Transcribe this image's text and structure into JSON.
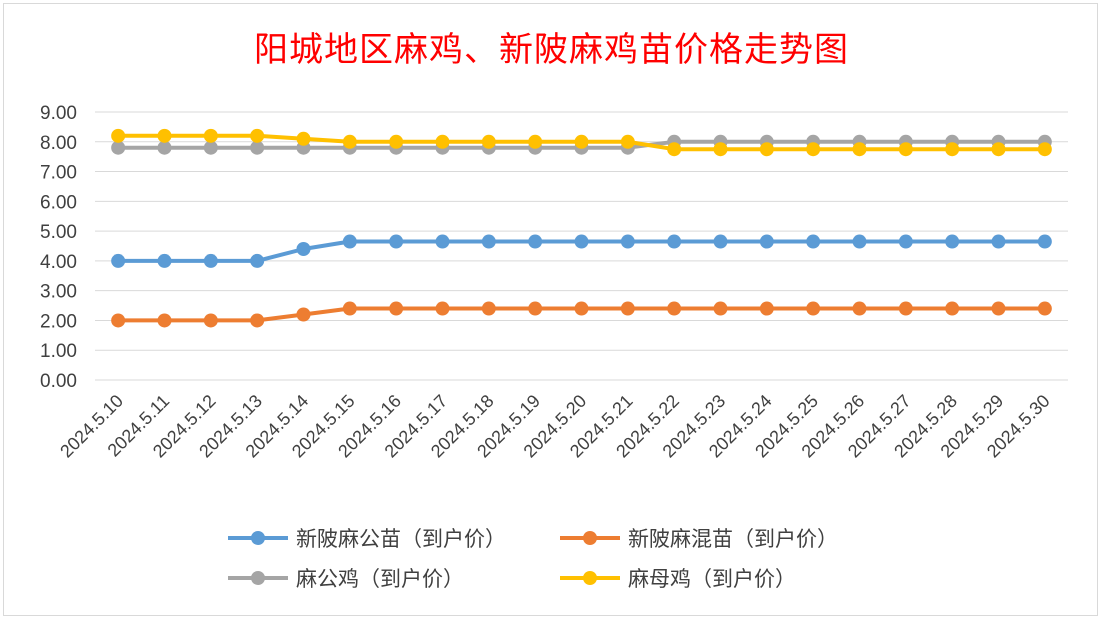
{
  "chart_data": {
    "type": "line",
    "title": "阳城地区麻鸡、新陂麻鸡苗价格走势图",
    "xlabel": "",
    "ylabel": "",
    "ylim": [
      0,
      9
    ],
    "y_ticks": [
      "0.00",
      "1.00",
      "2.00",
      "3.00",
      "4.00",
      "5.00",
      "6.00",
      "7.00",
      "8.00",
      "9.00"
    ],
    "grid": true,
    "legend_position": "bottom",
    "categories": [
      "2024.5.10",
      "2024.5.11",
      "2024.5.12",
      "2024.5.13",
      "2024.5.14",
      "2024.5.15",
      "2024.5.16",
      "2024.5.17",
      "2024.5.18",
      "2024.5.19",
      "2024.5.20",
      "2024.5.21",
      "2024.5.22",
      "2024.5.23",
      "2024.5.24",
      "2024.5.25",
      "2024.5.26",
      "2024.5.27",
      "2024.5.28",
      "2024.5.29",
      "2024.5.30"
    ],
    "series": [
      {
        "name": "新陂麻公苗（到户价）",
        "color": "#5b9bd5",
        "values": [
          4.0,
          4.0,
          4.0,
          4.0,
          4.4,
          4.65,
          4.65,
          4.65,
          4.65,
          4.65,
          4.65,
          4.65,
          4.65,
          4.65,
          4.65,
          4.65,
          4.65,
          4.65,
          4.65,
          4.65,
          4.65
        ]
      },
      {
        "name": "新陂麻混苗（到户价）",
        "color": "#ed7d31",
        "values": [
          2.0,
          2.0,
          2.0,
          2.0,
          2.2,
          2.4,
          2.4,
          2.4,
          2.4,
          2.4,
          2.4,
          2.4,
          2.4,
          2.4,
          2.4,
          2.4,
          2.4,
          2.4,
          2.4,
          2.4,
          2.4
        ]
      },
      {
        "name": "麻公鸡（到户价）",
        "color": "#a5a5a5",
        "values": [
          7.8,
          7.8,
          7.8,
          7.8,
          7.8,
          7.8,
          7.8,
          7.8,
          7.8,
          7.8,
          7.8,
          7.8,
          8.0,
          8.0,
          8.0,
          8.0,
          8.0,
          8.0,
          8.0,
          8.0,
          8.0
        ]
      },
      {
        "name": "麻母鸡（到户价）",
        "color": "#ffc000",
        "values": [
          8.2,
          8.2,
          8.2,
          8.2,
          8.1,
          8.0,
          8.0,
          8.0,
          8.0,
          8.0,
          8.0,
          8.0,
          7.75,
          7.75,
          7.75,
          7.75,
          7.75,
          7.75,
          7.75,
          7.75,
          7.75
        ]
      }
    ]
  }
}
